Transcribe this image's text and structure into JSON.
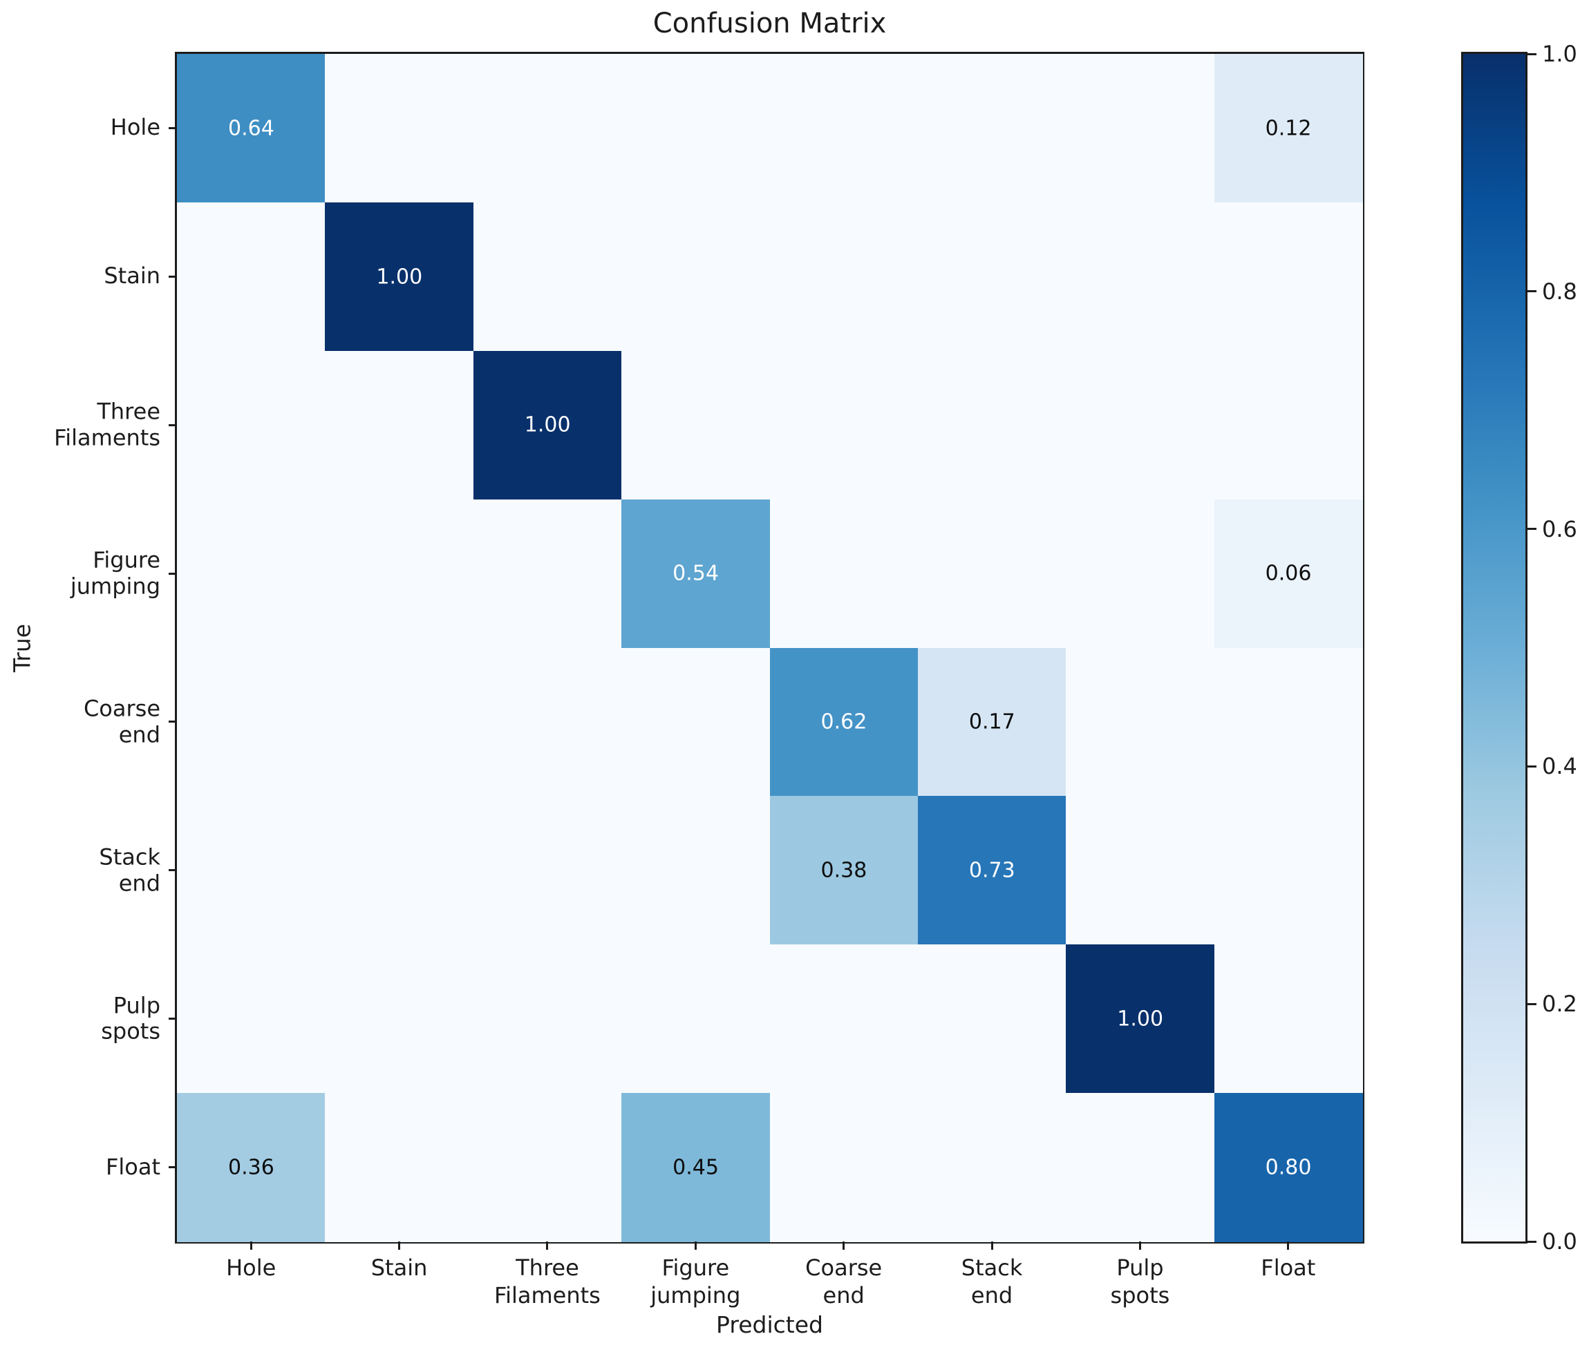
{
  "figure": {
    "title": "Confusion Matrix",
    "xlabel": "Predicted",
    "ylabel": "True"
  },
  "chart_data": {
    "type": "heatmap",
    "title": "Confusion Matrix",
    "xlabel": "Predicted",
    "ylabel": "True",
    "categories": [
      "Hole",
      "Stain",
      "Three\nFilaments",
      "Figure\njumping",
      "Coarse\nend",
      "Stack\nend",
      "Pulp\nspots",
      "Float"
    ],
    "matrix": [
      [
        0.64,
        0,
        0,
        0,
        0,
        0,
        0,
        0.12
      ],
      [
        0,
        1.0,
        0,
        0,
        0,
        0,
        0,
        0
      ],
      [
        0,
        0,
        1.0,
        0,
        0,
        0,
        0,
        0
      ],
      [
        0,
        0,
        0,
        0.54,
        0,
        0,
        0,
        0.06
      ],
      [
        0,
        0,
        0,
        0,
        0.62,
        0.17,
        0,
        0
      ],
      [
        0,
        0,
        0,
        0,
        0.38,
        0.73,
        0,
        0
      ],
      [
        0,
        0,
        0,
        0,
        0,
        0,
        1.0,
        0
      ],
      [
        0.36,
        0,
        0,
        0.45,
        0,
        0,
        0,
        0.8
      ]
    ],
    "value_range": [
      0.0,
      1.0
    ],
    "text_white_threshold": 0.5,
    "colormap": {
      "name": "Blues",
      "stops": [
        "#f7fbff",
        "#deebf7",
        "#c6dbef",
        "#9ecae1",
        "#6baed6",
        "#4292c6",
        "#2171b5",
        "#08519c",
        "#08306b"
      ]
    },
    "colorbar": {
      "ticks": [
        0.0,
        0.2,
        0.4,
        0.6,
        0.8,
        1.0
      ],
      "tick_labels": [
        "0.0",
        "0.2",
        "0.4",
        "0.6",
        "0.8",
        "1.0"
      ],
      "position": "right"
    },
    "colors": {
      "annotation_light": "#ffffff",
      "annotation_dark": "#0d0d0d",
      "axes_edge": "#1c1c1c",
      "background": "#ffffff"
    }
  }
}
